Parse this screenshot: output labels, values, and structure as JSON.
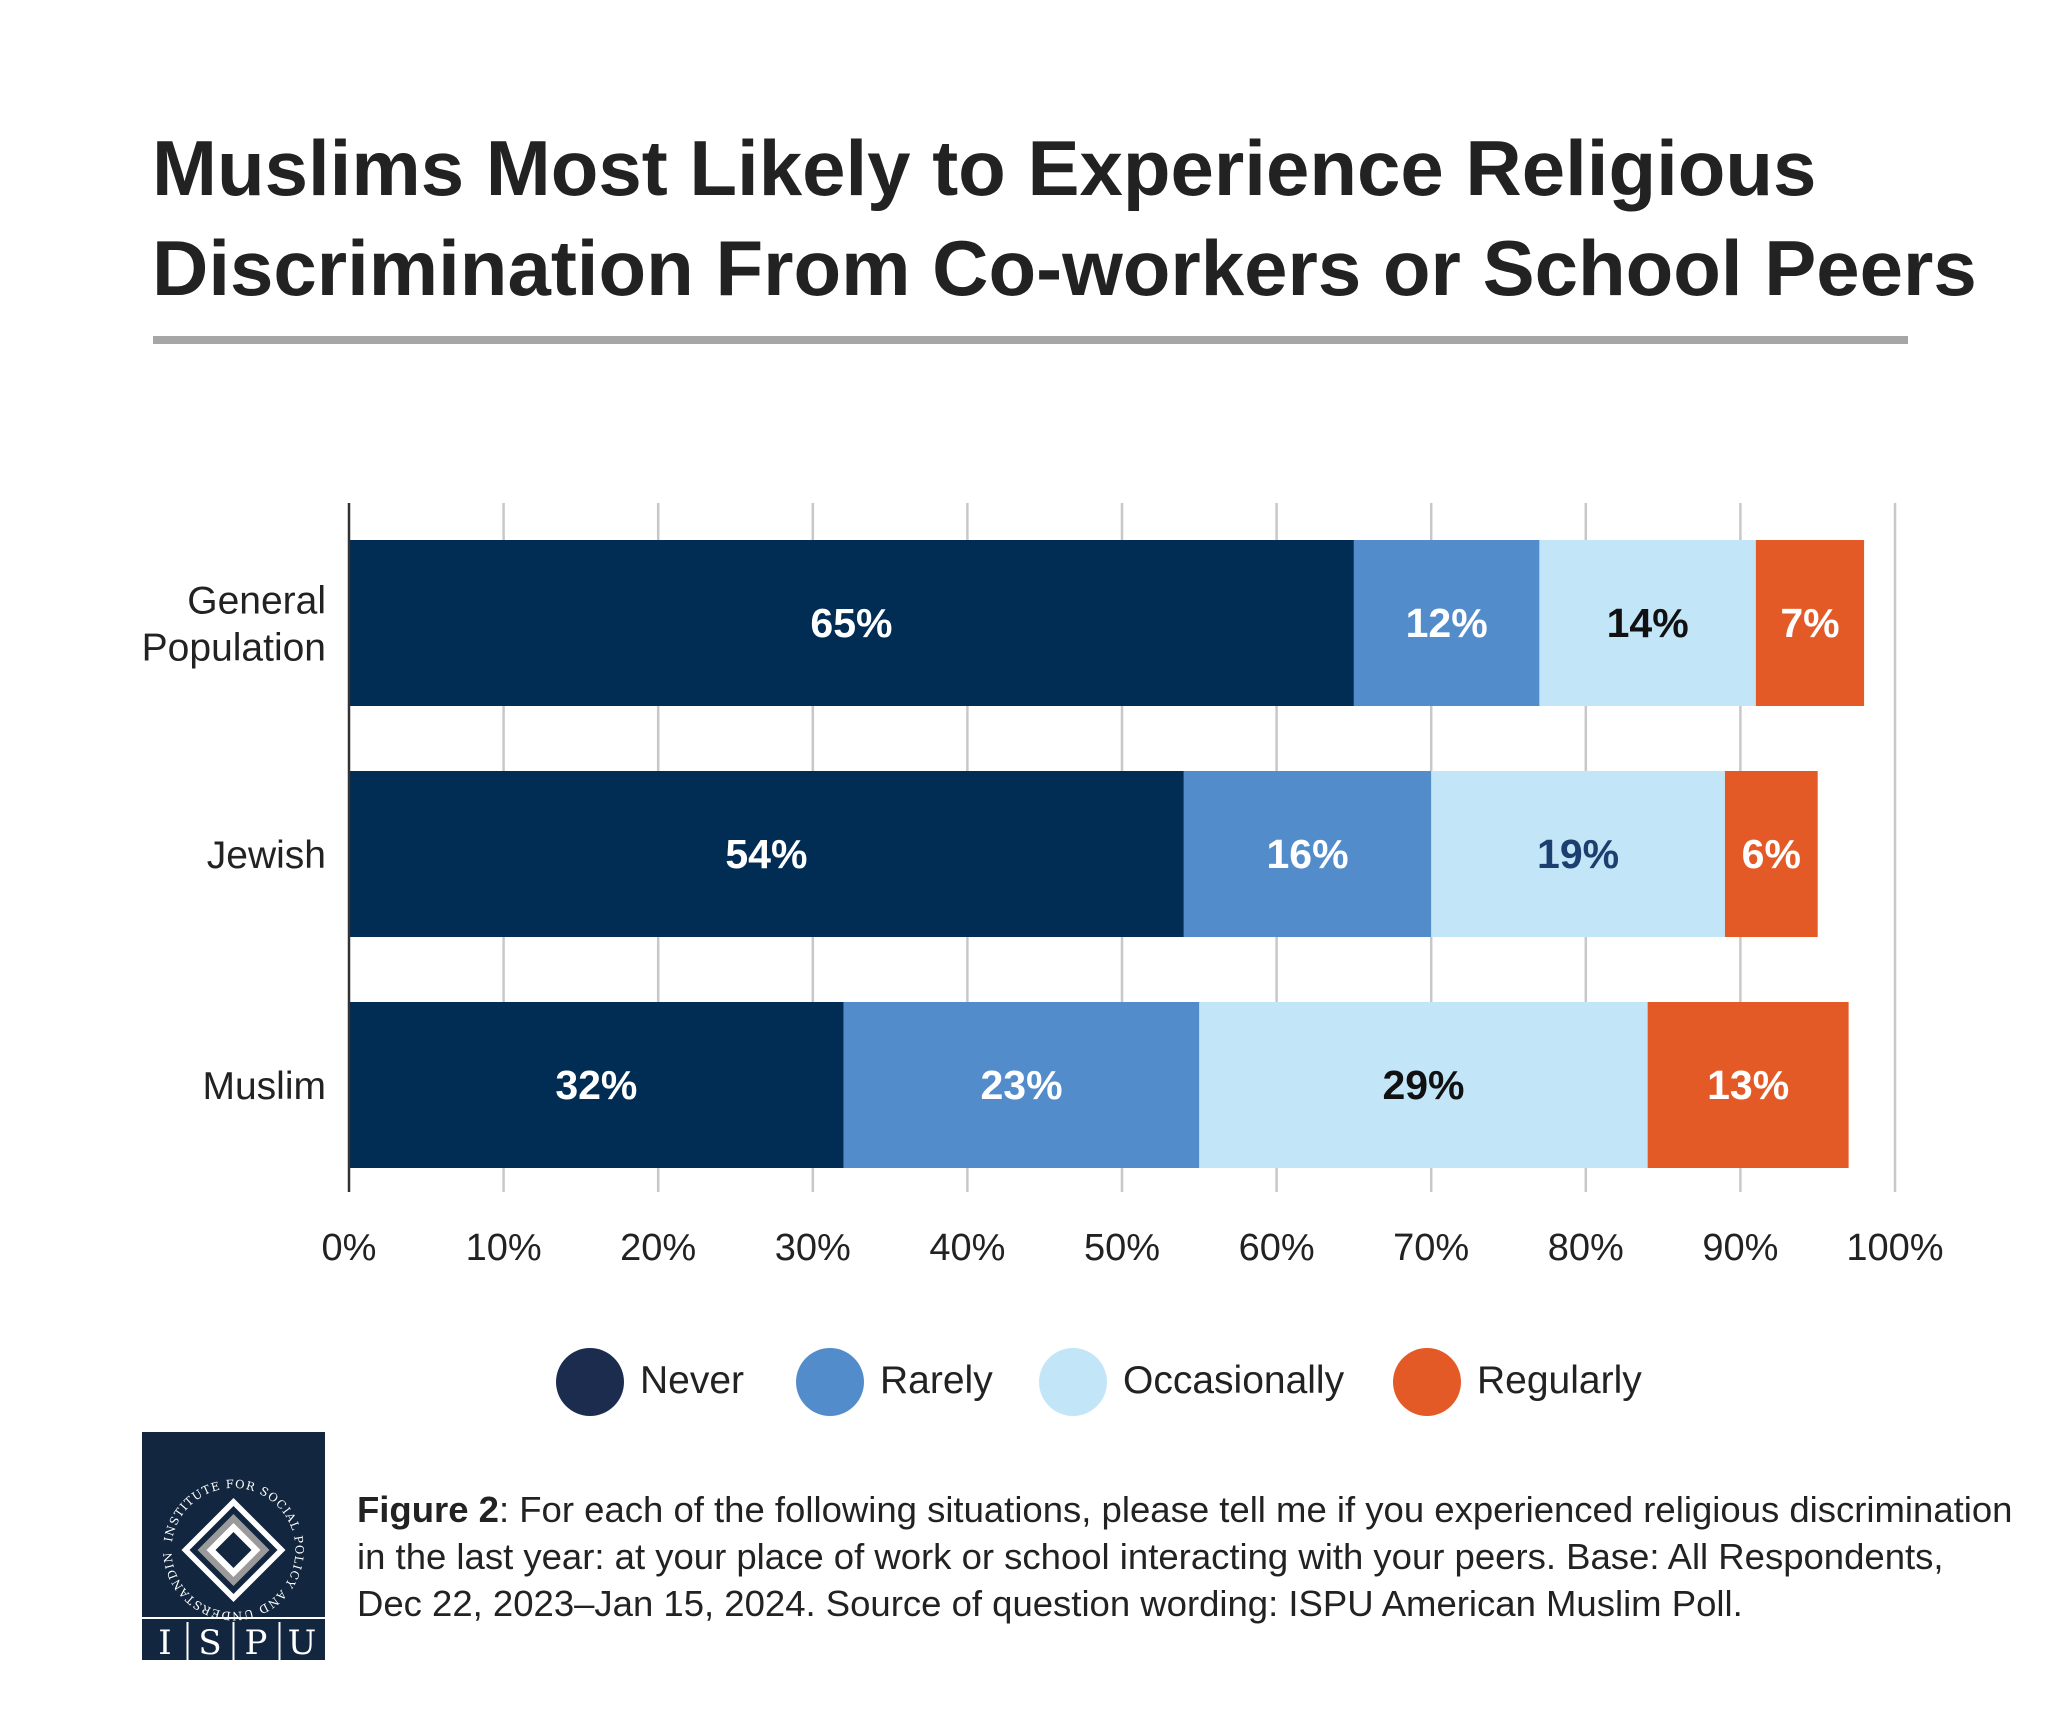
{
  "chart_data": {
    "type": "bar",
    "orientation": "horizontal",
    "stacked": true,
    "title": "Muslims Most Likely to Experience Religious Discrimination From Co-workers or School Peers",
    "xlabel": "",
    "ylabel": "",
    "xlim": [
      0,
      100
    ],
    "x_ticks": [
      "0%",
      "10%",
      "20%",
      "30%",
      "40%",
      "50%",
      "60%",
      "70%",
      "80%",
      "90%",
      "100%"
    ],
    "grid": true,
    "legend_position": "bottom",
    "categories": [
      "General Population",
      "Jewish",
      "Muslim"
    ],
    "category_lines": [
      [
        "General",
        "Population"
      ],
      [
        "Jewish"
      ],
      [
        "Muslim"
      ]
    ],
    "series": [
      {
        "name": "Never",
        "color": "#012d55",
        "values": [
          65,
          54,
          32
        ],
        "labels": [
          "65%",
          "54%",
          "32%"
        ],
        "label_colors": [
          "#ffffff",
          "#ffffff",
          "#ffffff"
        ]
      },
      {
        "name": "Rarely",
        "color": "#538ccb",
        "values": [
          12,
          16,
          23
        ],
        "labels": [
          "12%",
          "16%",
          "23%"
        ],
        "label_colors": [
          "#ffffff",
          "#ffffff",
          "#ffffff"
        ]
      },
      {
        "name": "Occasionally",
        "color": "#c3e5f8",
        "values": [
          14,
          19,
          29
        ],
        "labels": [
          "14%",
          "19%",
          "29%"
        ],
        "label_colors": [
          "#111111",
          "#1b3f6e",
          "#111111"
        ]
      },
      {
        "name": "Regularly",
        "color": "#e35a27",
        "values": [
          7,
          6,
          13
        ],
        "labels": [
          "7%",
          "6%",
          "13%"
        ],
        "label_colors": [
          "#ffffff",
          "#ffffff",
          "#ffffff"
        ]
      }
    ]
  },
  "legend": {
    "items": [
      {
        "label": "Never",
        "color": "#1b2c4f"
      },
      {
        "label": "Rarely",
        "color": "#538ccb"
      },
      {
        "label": "Occasionally",
        "color": "#c3e5f8"
      },
      {
        "label": "Regularly",
        "color": "#e35a27"
      }
    ]
  },
  "logo": {
    "ring_text": "INSTITUTE FOR SOCIAL POLICY AND UNDERSTANDING",
    "letters": [
      "I",
      "S",
      "P",
      "U"
    ],
    "color": "#12263f"
  },
  "note": {
    "label": "Figure 2",
    "text": ": For each of the following situations, please tell me if you experienced religious discrimination in the last year: at your place of work or school interacting with your peers. Base: All Respondents, Dec 22, 2023–Jan 15, 2024. Source of question wording: ISPU American Muslim Poll."
  }
}
